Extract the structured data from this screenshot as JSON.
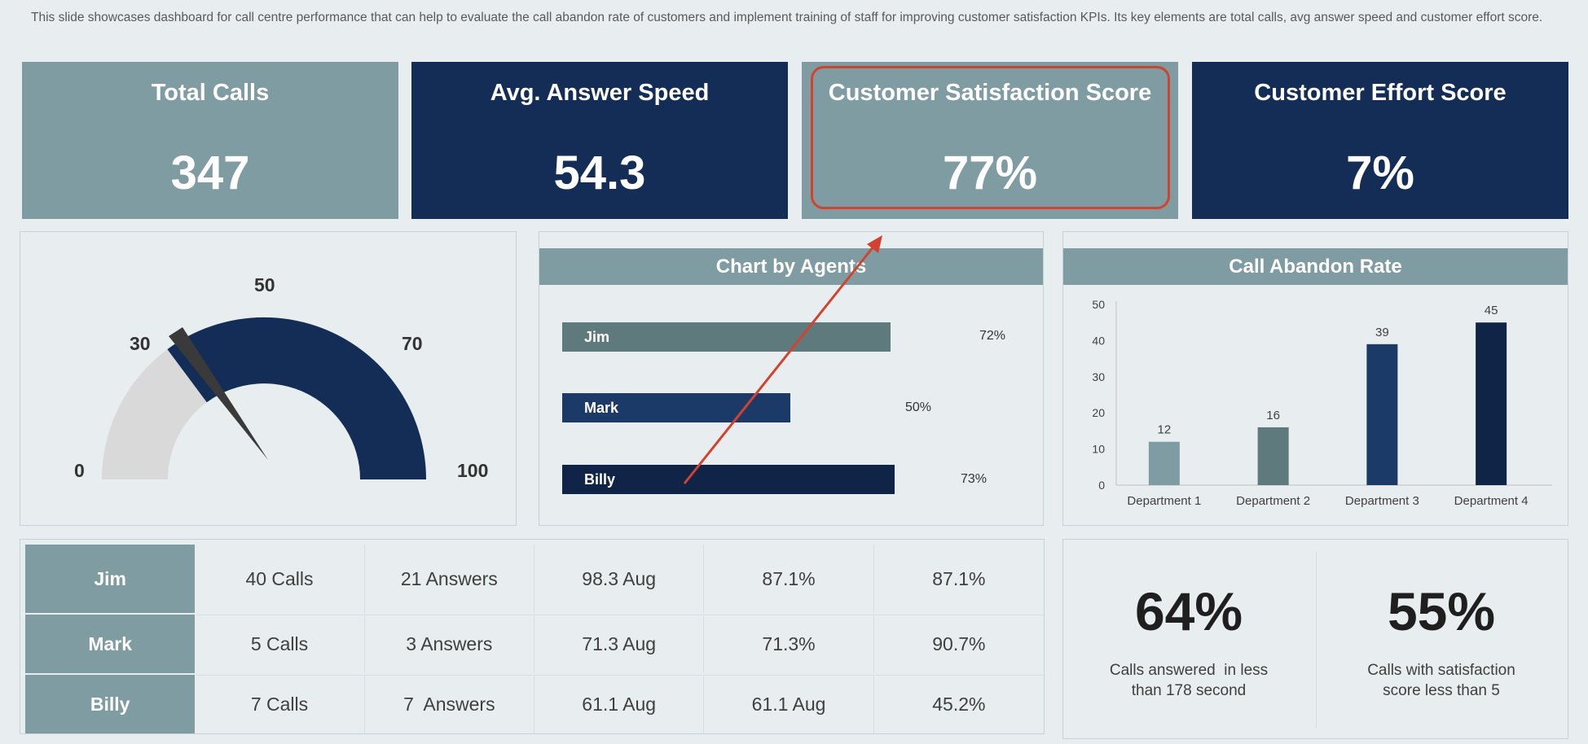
{
  "description": "This slide showcases dashboard for call centre performance that can help to evaluate the call abandon rate of customers and implement training of staff for improving customer satisfaction KPIs. Its key elements are total calls, avg answer speed and customer effort score.",
  "kpis": [
    {
      "title": "Total Calls",
      "value": "347",
      "color": "#7f9ca2"
    },
    {
      "title": "Avg. Answer Speed",
      "value": "54.3",
      "color": "#132d57"
    },
    {
      "title": "Customer Satisfaction Score",
      "value": "77%",
      "color": "#7f9ca2"
    },
    {
      "title": "Customer Effort Score",
      "value": "7%",
      "color": "#132d57"
    }
  ],
  "gauge": {
    "labels": [
      "0",
      "30",
      "50",
      "70",
      "100"
    ],
    "value": 30,
    "range": [
      0,
      100
    ],
    "filled_color": "#132d57",
    "empty_color": "#d9d9d9"
  },
  "agents_chart": {
    "title": "Chart by Agents",
    "agents": [
      {
        "name": "Jim",
        "value": 72,
        "label": "72%",
        "color": "#5e7a7c"
      },
      {
        "name": "Mark",
        "value": 50,
        "label": "50%",
        "color": "#1c3a68"
      },
      {
        "name": "Billy",
        "value": 73,
        "label": "73%",
        "color": "#0f2447"
      }
    ]
  },
  "chart_data": {
    "type": "bar",
    "title": "Call Abandon Rate",
    "categories": [
      "Department 1",
      "Department 2",
      "Department 3",
      "Department 4"
    ],
    "values": [
      12,
      16,
      39,
      45
    ],
    "colors": [
      "#7f9ca2",
      "#5e7a7c",
      "#1c3a68",
      "#0f2447"
    ],
    "ylim": [
      0,
      50
    ],
    "yticks": [
      0,
      10,
      20,
      30,
      40,
      50
    ]
  },
  "table": {
    "rows": [
      {
        "name": "Jim",
        "cells": [
          "40 Calls",
          "21 Answers",
          "98.3 Aug",
          "87.1%",
          "87.1%"
        ]
      },
      {
        "name": "Mark",
        "cells": [
          "5 Calls",
          "3 Answers",
          "71.3 Aug",
          "71.3%",
          "90.7%"
        ]
      },
      {
        "name": "Billy",
        "cells": [
          "7 Calls",
          "7  Answers",
          "61.1 Aug",
          "61.1 Aug",
          "45.2%"
        ]
      }
    ]
  },
  "stats": [
    {
      "value": "64%",
      "text_line1": "Calls answered  in less",
      "text_line2": "than 178 second"
    },
    {
      "value": "55%",
      "text_line1": "Calls with satisfaction",
      "text_line2": "score less than 5"
    }
  ],
  "annotation_color": "#d3422e"
}
